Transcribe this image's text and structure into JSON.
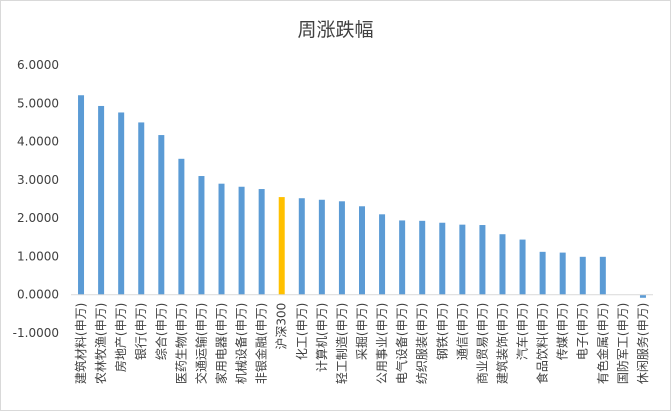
{
  "chart_data": {
    "type": "bar",
    "title": "周涨跌幅",
    "xlabel": "",
    "ylabel": "",
    "ylim": [
      -1,
      6
    ],
    "yticks": [
      "6.0000",
      "5.0000",
      "4.0000",
      "3.0000",
      "2.0000",
      "1.0000",
      "0.0000",
      "-1.0000"
    ],
    "grid": false,
    "legend": "none",
    "colors": {
      "default": "#5b9bd5",
      "highlight": "#ffc000",
      "axis": "#d9d9d9",
      "text": "#404040"
    },
    "highlight_category": "沪深300",
    "categories": [
      "建筑材料(申万)",
      "农林牧渔(申万)",
      "房地产(申万)",
      "银行(申万)",
      "综合(申万)",
      "医药生物(申万)",
      "交通运输(申万)",
      "家用电器(申万)",
      "机械设备(申万)",
      "非银金融(申万)",
      "沪深300",
      "化工(申万)",
      "计算机(申万)",
      "轻工制造(申万)",
      "采掘(申万)",
      "公用事业(申万)",
      "电气设备(申万)",
      "纺织服装(申万)",
      "钢铁(申万)",
      "通信(申万)",
      "商业贸易(申万)",
      "建筑装饰(申万)",
      "汽车(申万)",
      "食品饮料(申万)",
      "传媒(申万)",
      "电子(申万)",
      "有色金属(申万)",
      "国防军工(申万)",
      "休闲服务(申万)"
    ],
    "values": [
      5.21,
      4.93,
      4.76,
      4.5,
      4.17,
      3.55,
      3.1,
      2.9,
      2.82,
      2.76,
      2.55,
      2.52,
      2.48,
      2.44,
      2.31,
      2.1,
      1.94,
      1.93,
      1.88,
      1.83,
      1.82,
      1.58,
      1.44,
      1.12,
      1.1,
      0.99,
      0.99,
      0.0,
      -0.08
    ]
  }
}
